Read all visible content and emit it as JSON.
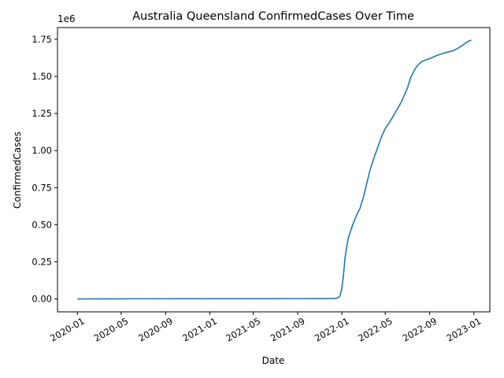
{
  "chart_data": {
    "type": "line",
    "title": "Australia Queensland ConfirmedCases Over Time",
    "xlabel": "Date",
    "ylabel": "ConfirmedCases",
    "y_offset_label": "1e6",
    "x_type": "date",
    "xlim": [
      "2019-11-07",
      "2023-02-14"
    ],
    "ylim": [
      -0.087,
      1.829
    ],
    "grid": false,
    "legend": "none",
    "x_ticks": [
      {
        "value": "2020-01-01",
        "label": "2020-01"
      },
      {
        "value": "2020-05-01",
        "label": "2020-05"
      },
      {
        "value": "2020-09-01",
        "label": "2020-09"
      },
      {
        "value": "2021-01-01",
        "label": "2021-01"
      },
      {
        "value": "2021-05-01",
        "label": "2021-05"
      },
      {
        "value": "2021-09-01",
        "label": "2021-09"
      },
      {
        "value": "2022-01-01",
        "label": "2022-01"
      },
      {
        "value": "2022-05-01",
        "label": "2022-05"
      },
      {
        "value": "2022-09-01",
        "label": "2022-09"
      },
      {
        "value": "2023-01-01",
        "label": "2023-01"
      }
    ],
    "y_ticks": [
      {
        "value": 0.0,
        "label": "0.00"
      },
      {
        "value": 0.25,
        "label": "0.25"
      },
      {
        "value": 0.5,
        "label": "0.50"
      },
      {
        "value": 0.75,
        "label": "0.75"
      },
      {
        "value": 1.0,
        "label": "1.00"
      },
      {
        "value": 1.25,
        "label": "1.25"
      },
      {
        "value": 1.5,
        "label": "1.50"
      },
      {
        "value": 1.75,
        "label": "1.75"
      }
    ],
    "series": [
      {
        "color": "#1f77b4",
        "x": [
          "2020-01-01",
          "2020-06-01",
          "2021-01-01",
          "2021-06-01",
          "2021-11-01",
          "2021-12-10",
          "2021-12-20",
          "2021-12-27",
          "2022-01-01",
          "2022-01-05",
          "2022-01-10",
          "2022-01-15",
          "2022-01-20",
          "2022-01-31",
          "2022-02-10",
          "2022-02-20",
          "2022-03-01",
          "2022-03-10",
          "2022-03-20",
          "2022-04-01",
          "2022-04-10",
          "2022-04-20",
          "2022-05-01",
          "2022-05-10",
          "2022-05-20",
          "2022-06-01",
          "2022-06-15",
          "2022-07-01",
          "2022-07-10",
          "2022-07-20",
          "2022-07-25",
          "2022-08-01",
          "2022-08-10",
          "2022-08-20",
          "2022-09-01",
          "2022-09-15",
          "2022-10-01",
          "2022-10-15",
          "2022-11-01",
          "2022-11-15",
          "2022-12-01",
          "2022-12-15",
          "2022-12-25"
        ],
        "y": [
          0.0,
          0.0012,
          0.0013,
          0.0016,
          0.002,
          0.003,
          0.006,
          0.02,
          0.07,
          0.15,
          0.28,
          0.36,
          0.42,
          0.5,
          0.56,
          0.61,
          0.68,
          0.77,
          0.87,
          0.96,
          1.02,
          1.09,
          1.15,
          1.18,
          1.22,
          1.27,
          1.33,
          1.42,
          1.49,
          1.54,
          1.56,
          1.58,
          1.6,
          1.61,
          1.62,
          1.635,
          1.65,
          1.66,
          1.67,
          1.685,
          1.71,
          1.735,
          1.745
        ]
      }
    ]
  }
}
